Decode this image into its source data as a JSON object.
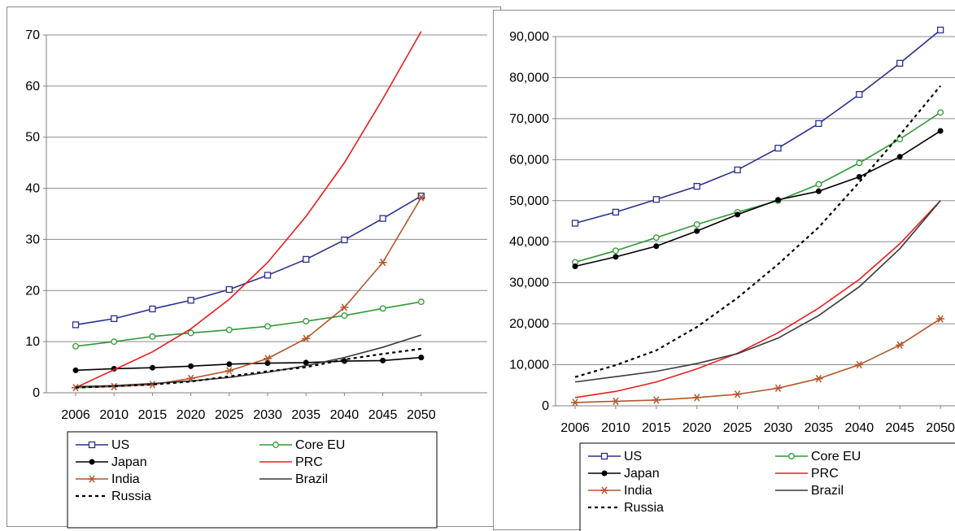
{
  "charts": [
    {
      "chart_data": {
        "type": "line",
        "x": [
          2006,
          2010,
          2015,
          2020,
          2025,
          2030,
          2035,
          2040,
          2045,
          2050
        ],
        "x_tick_labels": [
          "2006",
          "2010",
          "2015",
          "2020",
          "2025",
          "2030",
          "2035",
          "2040",
          "2045",
          "2050"
        ],
        "ylim": [
          0,
          70
        ],
        "y_tick_labels": [
          "0",
          "10",
          "20",
          "30",
          "40",
          "50",
          "60",
          "70"
        ],
        "y_ticks": [
          0,
          10,
          20,
          30,
          40,
          50,
          60,
          70
        ],
        "grid": true,
        "legend_position": "bottom",
        "series": [
          {
            "name": "US",
            "color": "#2b2f8f",
            "marker": "square",
            "values": [
              13.3,
              14.5,
              16.4,
              18.1,
              20.2,
              23.0,
              26.1,
              29.9,
              34.1,
              38.5
            ]
          },
          {
            "name": "Core EU",
            "color": "#2e9a34",
            "marker": "circle-open",
            "values": [
              9.1,
              10.0,
              11.0,
              11.7,
              12.3,
              13.0,
              14.0,
              15.1,
              16.5,
              17.8
            ]
          },
          {
            "name": "Japan",
            "color": "#000000",
            "marker": "dot",
            "values": [
              4.4,
              4.7,
              4.9,
              5.2,
              5.6,
              5.8,
              5.9,
              6.2,
              6.3,
              6.9
            ]
          },
          {
            "name": "PRC",
            "color": "#ee1c1c",
            "marker": "none",
            "values": [
              1.0,
              4.5,
              8.0,
              12.5,
              18.3,
              25.5,
              34.5,
              45.0,
              57.5,
              70.7
            ]
          },
          {
            "name": "India",
            "color": "#b5562a",
            "marker": "star",
            "values": [
              1.0,
              1.2,
              1.6,
              2.8,
              4.3,
              6.7,
              10.6,
              16.7,
              25.5,
              38.2
            ]
          },
          {
            "name": "Brazil",
            "color": "#3a3a3a",
            "marker": "none",
            "values": [
              1.2,
              1.4,
              1.8,
              2.3,
              3.0,
              4.0,
              5.3,
              6.9,
              8.9,
              11.3
            ]
          },
          {
            "name": "Russia",
            "color": "#000000",
            "marker": "dashed",
            "values": [
              1.0,
              1.3,
              1.6,
              2.2,
              3.2,
              4.2,
              5.0,
              6.5,
              7.6,
              8.6
            ]
          }
        ]
      },
      "legend": [
        {
          "label": "US",
          "color": "#2b2f8f",
          "marker": "square"
        },
        {
          "label": "Core EU",
          "color": "#2e9a34",
          "marker": "circle-open"
        },
        {
          "label": "Japan",
          "color": "#000000",
          "marker": "dot"
        },
        {
          "label": "PRC",
          "color": "#ee1c1c",
          "marker": "none"
        },
        {
          "label": "India",
          "color": "#b5562a",
          "marker": "star"
        },
        {
          "label": "Brazil",
          "color": "#3a3a3a",
          "marker": "none"
        },
        {
          "label": "Russia",
          "color": "#000000",
          "marker": "dashed"
        }
      ]
    },
    {
      "chart_data": {
        "type": "line",
        "x": [
          2006,
          2010,
          2015,
          2020,
          2025,
          2030,
          2035,
          2040,
          2045,
          2050
        ],
        "x_tick_labels": [
          "2006",
          "2010",
          "2015",
          "2020",
          "2025",
          "2030",
          "2035",
          "2040",
          "2045",
          "2050"
        ],
        "ylim": [
          0,
          90000
        ],
        "y_tick_labels": [
          "0",
          "10,000",
          "20,000",
          "30,000",
          "40,000",
          "50,000",
          "60,000",
          "70,000",
          "80,000",
          "90,000"
        ],
        "y_ticks": [
          0,
          10000,
          20000,
          30000,
          40000,
          50000,
          60000,
          70000,
          80000,
          90000
        ],
        "grid": true,
        "legend_position": "bottom",
        "series": [
          {
            "name": "US",
            "color": "#2b2f8f",
            "marker": "square",
            "values": [
              44500,
              47200,
              50300,
              53500,
              57500,
              62800,
              68800,
              75900,
              83500,
              91600
            ]
          },
          {
            "name": "Core EU",
            "color": "#2e9a34",
            "marker": "circle-open",
            "values": [
              35000,
              37800,
              41000,
              44200,
              47200,
              50000,
              54000,
              59200,
              65000,
              71500
            ]
          },
          {
            "name": "Japan",
            "color": "#000000",
            "marker": "dot",
            "values": [
              34000,
              36300,
              38900,
              42600,
              46600,
              50200,
              52300,
              55800,
              60700,
              67000
            ]
          },
          {
            "name": "PRC",
            "color": "#ee1c1c",
            "marker": "none",
            "values": [
              2000,
              3500,
              5800,
              9000,
              12800,
              17800,
              23800,
              30800,
              39500,
              50000
            ]
          },
          {
            "name": "India",
            "color": "#b5562a",
            "marker": "star",
            "values": [
              800,
              1100,
              1400,
              2000,
              2800,
              4300,
              6600,
              10000,
              14800,
              21200
            ]
          },
          {
            "name": "Brazil",
            "color": "#3a3a3a",
            "marker": "none",
            "values": [
              5800,
              7100,
              8400,
              10300,
              12700,
              16500,
              22000,
              29000,
              38300,
              50000
            ]
          },
          {
            "name": "Russia",
            "color": "#000000",
            "marker": "dashed",
            "values": [
              7000,
              9900,
              13500,
              19200,
              26300,
              34500,
              43500,
              54500,
              66000,
              78000
            ]
          }
        ]
      },
      "legend": [
        {
          "label": "US",
          "color": "#2b2f8f",
          "marker": "square"
        },
        {
          "label": "Core EU",
          "color": "#2e9a34",
          "marker": "circle-open"
        },
        {
          "label": "Japan",
          "color": "#000000",
          "marker": "dot"
        },
        {
          "label": "PRC",
          "color": "#ee1c1c",
          "marker": "none"
        },
        {
          "label": "India",
          "color": "#b5562a",
          "marker": "star"
        },
        {
          "label": "Brazil",
          "color": "#3a3a3a",
          "marker": "none"
        },
        {
          "label": "Russia",
          "color": "#000000",
          "marker": "dashed"
        }
      ]
    }
  ]
}
